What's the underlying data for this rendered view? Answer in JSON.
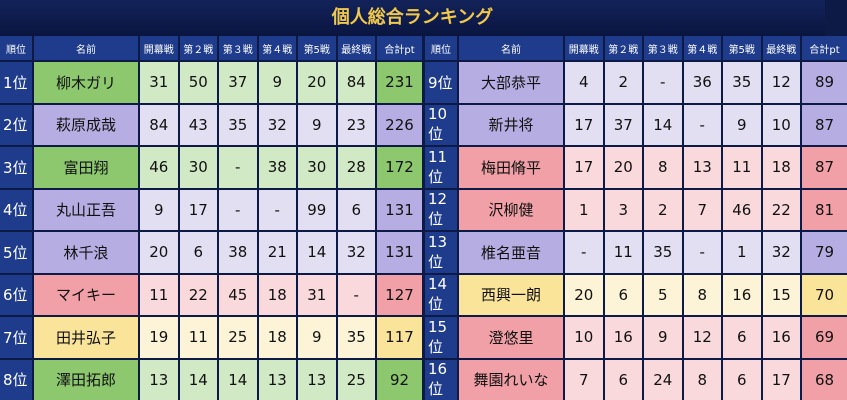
{
  "title": "個人総合ランキング",
  "header": [
    "順位",
    "名前",
    "開幕戦",
    "第２戦",
    "第３戦",
    "第４戦",
    "第5戦",
    "最終戦",
    "合計pt"
  ],
  "tables": [
    {
      "rows": [
        {
          "rank": "1位",
          "name": "柳木ガリ",
          "scores": [
            31,
            50,
            37,
            9,
            20,
            84
          ],
          "total": 231,
          "color": "#8dc86e"
        },
        {
          "rank": "2位",
          "name": "萩原成哉",
          "scores": [
            84,
            43,
            35,
            32,
            9,
            23
          ],
          "total": 226,
          "color": "#b6aee2"
        },
        {
          "rank": "3位",
          "name": "富田翔",
          "scores": [
            46,
            30,
            "-",
            38,
            30,
            28
          ],
          "total": 172,
          "color": "#8dc86e"
        },
        {
          "rank": "4位",
          "name": "丸山正吾",
          "scores": [
            9,
            17,
            "-",
            "-",
            99,
            6
          ],
          "total": 131,
          "color": "#b6aee2"
        },
        {
          "rank": "5位",
          "name": "林千浪",
          "scores": [
            20,
            6,
            38,
            21,
            14,
            32
          ],
          "total": 131,
          "color": "#b6aee2"
        },
        {
          "rank": "6位",
          "name": "マイキー",
          "scores": [
            11,
            22,
            45,
            18,
            31,
            "-"
          ],
          "total": 127,
          "color": "#f0a0a6"
        },
        {
          "rank": "7位",
          "name": "田井弘子",
          "scores": [
            19,
            11,
            25,
            18,
            9,
            35
          ],
          "total": 117,
          "color": "#fae49a"
        },
        {
          "rank": "8位",
          "name": "澤田拓郎",
          "scores": [
            13,
            14,
            14,
            13,
            13,
            25
          ],
          "total": 92,
          "color": "#8dc86e"
        }
      ]
    },
    {
      "rows": [
        {
          "rank": "9位",
          "name": "大部恭平",
          "scores": [
            4,
            2,
            "-",
            36,
            35,
            12
          ],
          "total": 89,
          "color": "#b6aee2"
        },
        {
          "rank": "10位",
          "name": "新井将",
          "scores": [
            17,
            37,
            14,
            "-",
            9,
            10
          ],
          "total": 87,
          "color": "#b6aee2"
        },
        {
          "rank": "11位",
          "name": "梅田脩平",
          "scores": [
            17,
            20,
            8,
            13,
            11,
            18
          ],
          "total": 87,
          "color": "#f0a0a6"
        },
        {
          "rank": "12位",
          "name": "沢柳健",
          "scores": [
            1,
            3,
            2,
            7,
            46,
            22
          ],
          "total": 81,
          "color": "#f0a0a6"
        },
        {
          "rank": "13位",
          "name": "椎名亜音",
          "scores": [
            "-",
            11,
            35,
            "-",
            1,
            32
          ],
          "total": 79,
          "color": "#b6aee2"
        },
        {
          "rank": "14位",
          "name": "西興一朗",
          "scores": [
            20,
            6,
            5,
            8,
            16,
            15
          ],
          "total": 70,
          "color": "#fae49a"
        },
        {
          "rank": "15位",
          "name": "澄悠里",
          "scores": [
            10,
            16,
            9,
            12,
            6,
            16
          ],
          "total": 69,
          "color": "#f0a0a6"
        },
        {
          "rank": "16位",
          "name": "舞園れいな",
          "scores": [
            7,
            6,
            24,
            8,
            6,
            17
          ],
          "total": 68,
          "color": "#f0a0a6"
        }
      ]
    }
  ]
}
